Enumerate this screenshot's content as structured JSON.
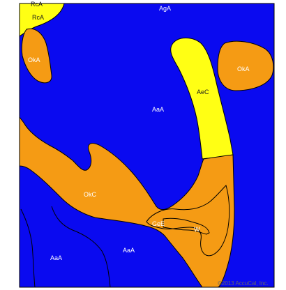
{
  "map": {
    "colors": {
      "blue": "#0a0af0",
      "orange": "#f59b14",
      "yellow": "#ffff14",
      "outline": "#000000",
      "frame": "#000000"
    },
    "labels": {
      "rca": "RcA",
      "rca_top": "RcA",
      "aga_top": "AgA",
      "oka_left": "OkA",
      "oka_right": "OkA",
      "aec": "AeC",
      "aaa_center": "AaA",
      "okc": "OkC",
      "gee": "GeE",
      "w": "W",
      "aaa_bottom_left": "AaA",
      "aaa_bottom_mid": "AaA"
    },
    "copyright": "©2013 AccuCal, Inc."
  }
}
